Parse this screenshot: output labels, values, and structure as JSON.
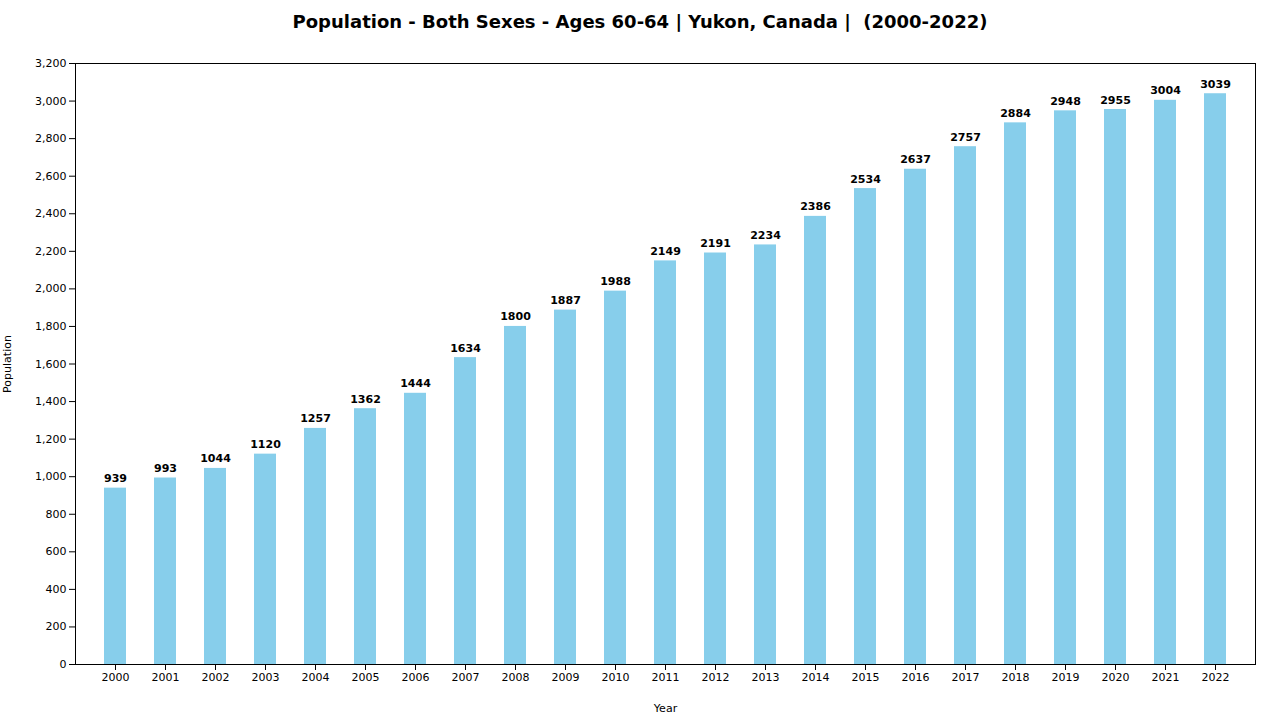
{
  "chart_data": {
    "type": "bar",
    "title": "Population - Both Sexes - Ages 60-64 | Yukon, Canada |  (2000-2022)",
    "xlabel": "Year",
    "ylabel": "Population",
    "categories": [
      "2000",
      "2001",
      "2002",
      "2003",
      "2004",
      "2005",
      "2006",
      "2007",
      "2008",
      "2009",
      "2010",
      "2011",
      "2012",
      "2013",
      "2014",
      "2015",
      "2016",
      "2017",
      "2018",
      "2019",
      "2020",
      "2021",
      "2022"
    ],
    "values": [
      939,
      993,
      1044,
      1120,
      1257,
      1362,
      1444,
      1634,
      1800,
      1887,
      1988,
      2149,
      2191,
      2234,
      2386,
      2534,
      2637,
      2757,
      2884,
      2948,
      2955,
      3004,
      3039
    ],
    "color": "#87CEEB",
    "ylim": [
      0,
      3200
    ],
    "yticks": [
      0,
      200,
      400,
      600,
      800,
      1000,
      1200,
      1400,
      1600,
      1800,
      2000,
      2200,
      2400,
      2600,
      2800,
      3000,
      3200
    ],
    "grid": false,
    "data_labels": true
  }
}
